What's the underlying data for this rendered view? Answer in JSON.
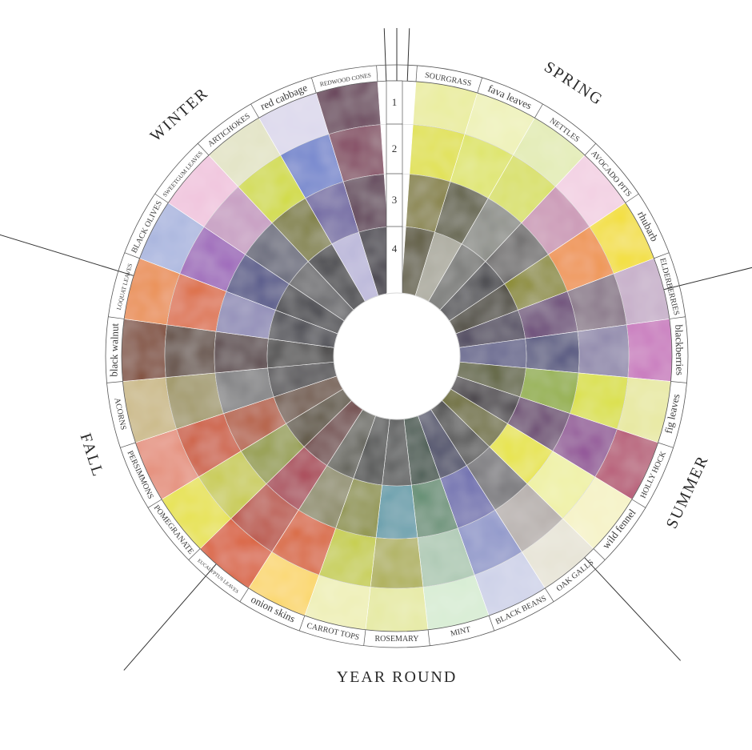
{
  "seasons": [
    {
      "name": "SPRING",
      "angle": 33
    },
    {
      "name": "SUMMER",
      "angle": 115
    },
    {
      "name": "YEAR ROUND",
      "angle": 180
    },
    {
      "name": "FALL",
      "angle": 252
    },
    {
      "name": "WINTER",
      "angle": 318
    }
  ],
  "season_dividers": [
    0,
    76,
    137,
    221,
    287
  ],
  "ring_labels": [
    "1",
    "2",
    "3",
    "4"
  ],
  "plants": [
    {
      "name": "SOURGRASS",
      "colors": [
        "#e9ec9a",
        "#dfe03c",
        "#7f7a2a",
        "#5a5636"
      ]
    },
    {
      "name": "fava leaves",
      "colors": [
        "#eef1b6",
        "#dde45e",
        "#5a5a3c",
        "#a8a79a"
      ]
    },
    {
      "name": "NETTLES",
      "colors": [
        "#e2ebb2",
        "#d7df5a",
        "#888a84",
        "#6e6f6c"
      ]
    },
    {
      "name": "AVOCADO PITS",
      "colors": [
        "#f2cfe2",
        "#c994b3",
        "#6a6868",
        "#404046"
      ]
    },
    {
      "name": "rhubarb",
      "colors": [
        "#f2de1e",
        "#ee8e3a",
        "#8a8a28",
        "#3f3b2a"
      ]
    },
    {
      "name": "ELDERBERRIES",
      "colors": [
        "#c5adc8",
        "#837083",
        "#6a4777",
        "#3f3553"
      ]
    },
    {
      "name": "blackberries",
      "colors": [
        "#c774bc",
        "#8a82a8",
        "#4d4e7c",
        "#5a5a88"
      ]
    },
    {
      "name": "fig leaves",
      "colors": [
        "#e7e89e",
        "#d9df30",
        "#8cab28",
        "#565b2a"
      ]
    },
    {
      "name": "HOLLY HOCK",
      "colors": [
        "#b34a6c",
        "#8d4793",
        "#653e6c",
        "#3f3940"
      ]
    },
    {
      "name": "wild fennel",
      "colors": [
        "#f5f2c4",
        "#eef0a0",
        "#e6e336",
        "#6a6a2a"
      ]
    },
    {
      "name": "OAK GALLS",
      "colors": [
        "#e6e3d5",
        "#b5aeab",
        "#737276",
        "#4a4a4a"
      ]
    },
    {
      "name": "BLACK BEANS",
      "colors": [
        "#cdd1e8",
        "#8d95c9",
        "#6868ad",
        "#3d3f60"
      ]
    },
    {
      "name": "MINT",
      "colors": [
        "#d6ecd2",
        "#acc8b2",
        "#5f8c6f",
        "#2f4a3d"
      ]
    },
    {
      "name": "ROSEMARY",
      "colors": [
        "#e5e9a0",
        "#aeb057",
        "#5c9aa8",
        "#505252"
      ]
    },
    {
      "name": "CARROT TOPS",
      "colors": [
        "#eeefb4",
        "#c4cc3a",
        "#8a8f38",
        "#3f4140"
      ]
    },
    {
      "name": "onion skins",
      "colors": [
        "#fad664",
        "#d86332",
        "#8a8862",
        "#5a5a50"
      ]
    },
    {
      "name": "EUCALYPTUS LEAVES",
      "colors": [
        "#d8561e",
        "#b94b3a",
        "#a7394c",
        "#6a3a3a"
      ]
    },
    {
      "name": "POMEGRANATE",
      "colors": [
        "#e6e138",
        "#c7ca46",
        "#919a3a",
        "#574c35"
      ]
    },
    {
      "name": "PERSIMMONS",
      "colors": [
        "#e48a74",
        "#cc5834",
        "#b45a3a",
        "#6a4e3c"
      ]
    },
    {
      "name": "ACORNS",
      "colors": [
        "#c9b782",
        "#9e9561",
        "#7a7a7c",
        "#444246"
      ]
    },
    {
      "name": "black walnut",
      "colors": [
        "#7a3c1a",
        "#5e463a",
        "#523b3f",
        "#3a3838"
      ]
    },
    {
      "name": "LOQUAT LEAVES",
      "colors": [
        "#e98a42",
        "#dc6a3c",
        "#8a86b4",
        "#3f3f48"
      ]
    },
    {
      "name": "BLACK OLIVES",
      "colors": [
        "#a8b4de",
        "#9a5fb8",
        "#4e5086",
        "#33333b"
      ]
    },
    {
      "name": "SWEETGUM LEAVES",
      "colors": [
        "#f0c4dd",
        "#c59ac0",
        "#5d5f73",
        "#5a5a5e"
      ]
    },
    {
      "name": "ARTICHOKES",
      "colors": [
        "#e2e3c4",
        "#d0da35",
        "#7a7a30",
        "#3f3f44"
      ]
    },
    {
      "name": "red cabbage",
      "colors": [
        "#dcd8ec",
        "#6b7fcb",
        "#6a60a0",
        "#b8b4d8"
      ]
    },
    {
      "name": "REDWOOD CONES",
      "colors": [
        "#5e2c4c",
        "#7e3a58",
        "#5a3650",
        "#2e2838"
      ]
    }
  ]
}
